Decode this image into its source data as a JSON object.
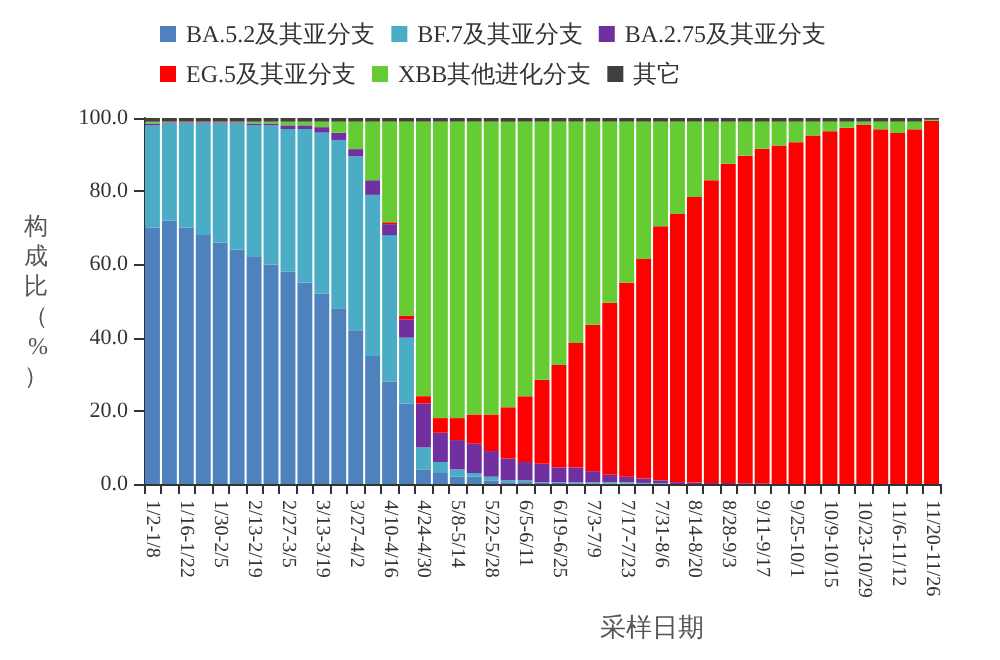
{
  "chart_data": {
    "type": "bar",
    "stacked": true,
    "xlabel": "采样日期",
    "ylabel": "构成比（%）",
    "categories": [
      "1/2-1/8",
      null,
      "1/16-1/22",
      null,
      "1/30-2/5",
      null,
      "2/13-2/19",
      null,
      "2/27-3/5",
      null,
      "3/13-3/19",
      null,
      "3/27-4/2",
      null,
      "4/10-4/16",
      null,
      "4/24-4/30",
      null,
      "5/8-5/14",
      null,
      "5/22-5/28",
      null,
      "6/5-6/11",
      null,
      "6/19-6/25",
      null,
      "7/3-7/9",
      null,
      "7/17-7/23",
      null,
      "7/31-8/6",
      null,
      "8/14-8/20",
      null,
      "8/28-9/3",
      null,
      "9/11-9/17",
      null,
      "9/25-10/1",
      null,
      "10/9-10/15",
      null,
      "10/23-10/29",
      null,
      "11/6-11/12",
      null,
      "11/20-11/26"
    ],
    "ylim": [
      0,
      100
    ],
    "yticks": [
      {
        "value": 0,
        "label": "0.0"
      },
      {
        "value": 20,
        "label": "20.0"
      },
      {
        "value": 40,
        "label": "40.0"
      },
      {
        "value": 60,
        "label": "60.0"
      },
      {
        "value": 80,
        "label": "80.0"
      },
      {
        "value": 100,
        "label": "100.0"
      }
    ],
    "grid": false,
    "legend": "top",
    "series": [
      {
        "name": "BA.5.2及其亚分支",
        "color": "#4f81bd",
        "values": [
          70,
          72,
          70,
          68,
          66,
          64,
          62,
          60,
          58,
          55,
          52,
          48,
          42,
          35,
          28,
          22,
          4,
          3,
          2,
          2,
          1,
          0.5,
          0.5,
          0.3,
          0.3,
          0.2,
          0.2,
          0.1,
          0.1,
          0,
          0,
          0,
          0,
          0,
          0,
          0,
          0,
          0,
          0,
          0,
          0,
          0,
          0,
          0,
          0,
          0,
          0
        ]
      },
      {
        "name": "BF.7及其亚分支",
        "color": "#4bacc6",
        "values": [
          28,
          26.5,
          28.5,
          30.5,
          32.5,
          34.5,
          36,
          38,
          39,
          42,
          44,
          46,
          47.5,
          44,
          40,
          18,
          6,
          3,
          2,
          1,
          1,
          0.5,
          0.5,
          0.2,
          0.2,
          0.3,
          0.3,
          0.4,
          0.4,
          0.3,
          0.2,
          0,
          0,
          0,
          0,
          0,
          0,
          0,
          0,
          0,
          0,
          0,
          0,
          0,
          0,
          0,
          0
        ]
      },
      {
        "name": "BA.2.75及其亚分支",
        "color": "#7030a0",
        "values": [
          0.5,
          0.3,
          0.3,
          0.3,
          0.3,
          0.3,
          0.5,
          0.5,
          1,
          1,
          1.5,
          2,
          2,
          4,
          3,
          5,
          12,
          8,
          8,
          8,
          7,
          6,
          5,
          5,
          4,
          4,
          3,
          2,
          1.5,
          1.2,
          0.8,
          0.5,
          0.4,
          0.3,
          0.3,
          0.2,
          0.2,
          0,
          0,
          0,
          0,
          0,
          0,
          0,
          0,
          0,
          0
        ]
      },
      {
        "name": "EG.5及其亚分支",
        "color": "#ff0000",
        "values": [
          0,
          0,
          0,
          0,
          0,
          0,
          0,
          0,
          0,
          0,
          0,
          0,
          0,
          0,
          0.5,
          1,
          2,
          4,
          6,
          8,
          10,
          14,
          18,
          23,
          28,
          34,
          40,
          47,
          53,
          60,
          69.4,
          73.3,
          78,
          82.7,
          87.2,
          89.5,
          91.4,
          92.5,
          93.4,
          95.2,
          96.4,
          97.3,
          98.2,
          96.9,
          95.9,
          96.9,
          99.2
        ]
      },
      {
        "name": "XBB其他进化分支",
        "color": "#66cc33",
        "values": [
          0.5,
          0.2,
          0.2,
          0.2,
          0.2,
          0.2,
          0.5,
          0.5,
          1,
          1,
          1.5,
          3,
          7.5,
          16,
          27.5,
          53,
          75,
          81,
          81,
          80,
          80,
          78,
          75,
          70.5,
          66.5,
          60.5,
          55.5,
          49.5,
          44,
          37.5,
          28.6,
          25.2,
          20.6,
          16,
          11.5,
          9.3,
          7.4,
          6.5,
          5.6,
          3.8,
          2.6,
          1.7,
          0.8,
          2.1,
          3.1,
          2.1,
          0.3
        ]
      },
      {
        "name": "其它",
        "color": "#404040",
        "values": [
          1,
          1,
          1,
          1,
          1,
          1,
          1,
          1,
          1,
          1,
          1,
          1,
          1,
          1,
          1,
          1,
          1,
          1,
          1,
          1,
          1,
          1,
          1,
          1,
          1,
          1,
          1,
          1,
          1,
          1,
          1,
          1,
          1,
          1,
          1,
          1,
          1,
          1,
          1,
          1,
          1,
          1,
          1,
          1,
          1,
          1,
          0.5
        ]
      }
    ]
  }
}
